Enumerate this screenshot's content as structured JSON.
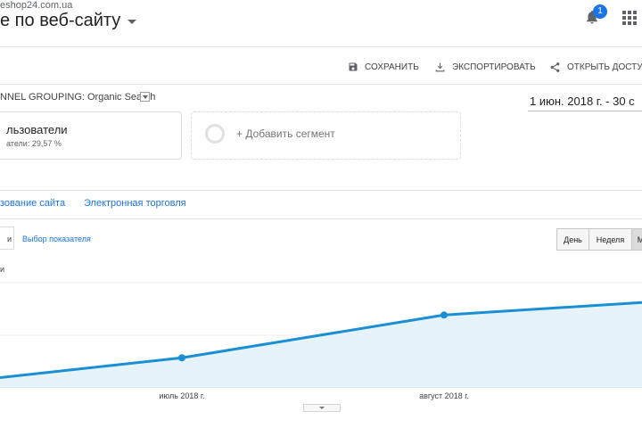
{
  "header": {
    "site_url": "eshop24.com.ua",
    "title": "е по веб-сайту",
    "notification_count": "1"
  },
  "toolbar": {
    "save_label": "СОХРАНИТЬ",
    "export_label": "ЭКСПОРТИРОВАТЬ",
    "share_label": "ОТКРЫТЬ ДОСТУП"
  },
  "filters": {
    "channel_grouping": "NNEL GROUPING: Organic Search",
    "date_range": "1 июн. 2018 г. - 30 с"
  },
  "segments": {
    "active": {
      "name": "льзователи",
      "subtitle": "атели: 29,57 %"
    },
    "add_label": "+ Добавить сегмент"
  },
  "tabs": [
    {
      "label": "зование сайта"
    },
    {
      "label": "Электронная торговля"
    }
  ],
  "metric_controls": {
    "and_label": "и",
    "picker_label": "Выбор показателя"
  },
  "granularity": {
    "day": "День",
    "week": "Неделя",
    "month": "М"
  },
  "chart_data": {
    "type": "area",
    "series_label_fragment": "и",
    "x_tick_labels": [
      "июль 2018 г.",
      "август 2018 г."
    ],
    "points": [
      {
        "x": "2018-06",
        "y": 0.18
      },
      {
        "x": "2018-07",
        "y": 0.56
      },
      {
        "x": "2018-08",
        "y": 1.38
      },
      {
        "x": "2018-09",
        "y": 1.62
      }
    ],
    "ylim": [
      0,
      2.0
    ],
    "gridlines": true,
    "line_color": "#1a8fd4",
    "fill_color": "#e6f3fb"
  }
}
